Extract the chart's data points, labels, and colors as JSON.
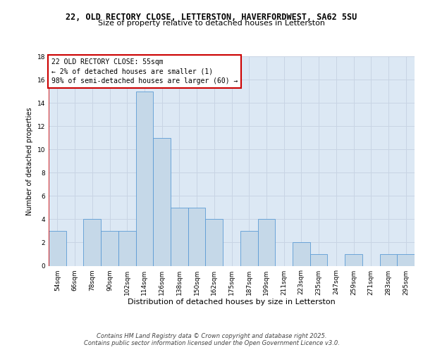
{
  "title1": "22, OLD RECTORY CLOSE, LETTERSTON, HAVERFORDWEST, SA62 5SU",
  "title2": "Size of property relative to detached houses in Letterston",
  "xlabel": "Distribution of detached houses by size in Letterston",
  "ylabel": "Number of detached properties",
  "categories": [
    "54sqm",
    "66sqm",
    "78sqm",
    "90sqm",
    "102sqm",
    "114sqm",
    "126sqm",
    "138sqm",
    "150sqm",
    "162sqm",
    "175sqm",
    "187sqm",
    "199sqm",
    "211sqm",
    "223sqm",
    "235sqm",
    "247sqm",
    "259sqm",
    "271sqm",
    "283sqm",
    "295sqm"
  ],
  "values": [
    3,
    0,
    4,
    3,
    3,
    15,
    11,
    5,
    5,
    4,
    0,
    3,
    4,
    0,
    2,
    1,
    0,
    1,
    0,
    1,
    1
  ],
  "bar_color": "#c5d8e8",
  "bar_edge_color": "#5b9bd5",
  "highlight_line_color": "#cc0000",
  "annotation_text": "22 OLD RECTORY CLOSE: 55sqm\n← 2% of detached houses are smaller (1)\n98% of semi-detached houses are larger (60) →",
  "annotation_box_edge_color": "#cc0000",
  "ylim": [
    0,
    18
  ],
  "yticks": [
    0,
    2,
    4,
    6,
    8,
    10,
    12,
    14,
    16,
    18
  ],
  "grid_color": "#c8d4e4",
  "bg_color": "#dce8f4",
  "footer": "Contains HM Land Registry data © Crown copyright and database right 2025.\nContains public sector information licensed under the Open Government Licence v3.0.",
  "title1_fontsize": 8.5,
  "title2_fontsize": 8,
  "xlabel_fontsize": 8,
  "ylabel_fontsize": 7,
  "tick_fontsize": 6.5,
  "annotation_fontsize": 7,
  "footer_fontsize": 6
}
